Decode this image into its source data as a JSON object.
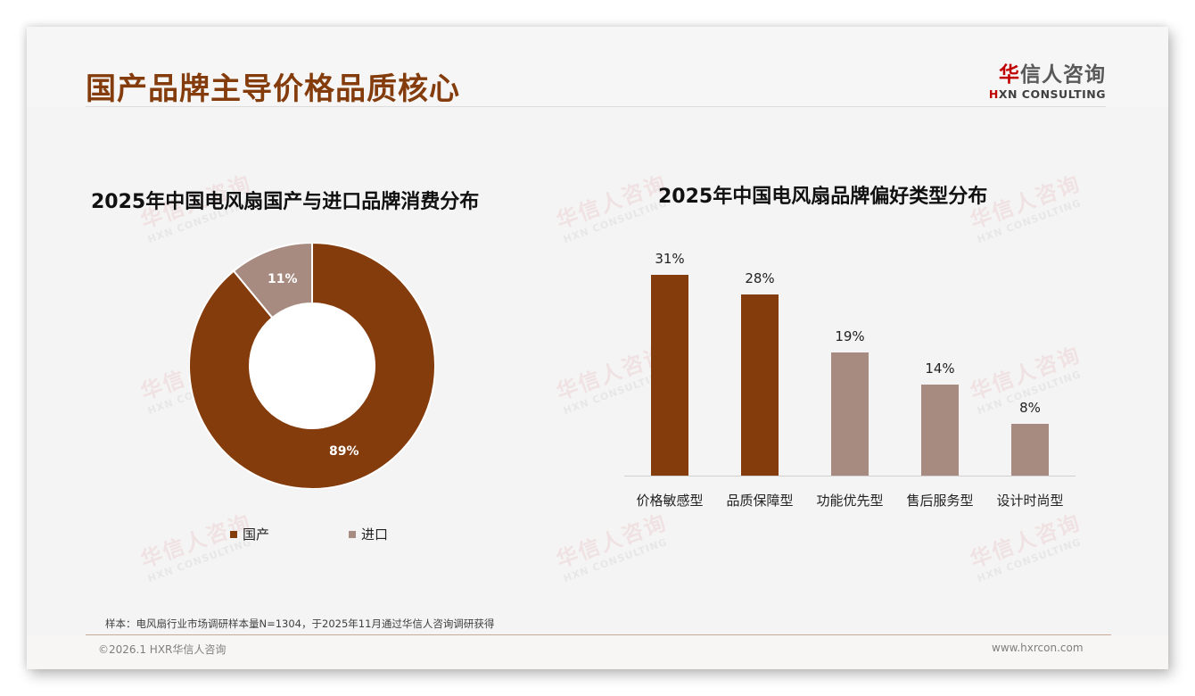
{
  "page": {
    "title": "国产品牌主导价格品质核心",
    "logo": {
      "cn_red": "华",
      "cn_rest": "信人咨询",
      "en_red": "H",
      "en_rest": "XN CONSULTING"
    },
    "watermark": {
      "cn": "华信人咨询",
      "en": "HXN CONSULTING"
    },
    "note": "样本：电风扇行业市场调研样本量N=1304，于2025年11月通过华信人咨询调研获得",
    "copyright": "©2026.1 HXR华信人咨询",
    "website": "www.hxrcon.com"
  },
  "colors": {
    "primary": "#843c0c",
    "secondary": "#a88b80",
    "title": "#843c0c"
  },
  "chart_data": [
    {
      "type": "pie",
      "variant": "donut",
      "title": "2025年中国电风扇国产与进口品牌消费分布",
      "categories": [
        "国产",
        "进口"
      ],
      "values": [
        89,
        11
      ],
      "labels": [
        "89%",
        "11%"
      ],
      "colors": [
        "#843c0c",
        "#a88b80"
      ],
      "legend_position": "bottom"
    },
    {
      "type": "bar",
      "title": "2025年中国电风扇品牌偏好类型分布",
      "categories": [
        "价格敏感型",
        "品质保障型",
        "功能优先型",
        "售后服务型",
        "设计时尚型"
      ],
      "values": [
        31,
        28,
        19,
        14,
        8
      ],
      "labels": [
        "31%",
        "28%",
        "19%",
        "14%",
        "8%"
      ],
      "colors": [
        "#843c0c",
        "#843c0c",
        "#a88b80",
        "#a88b80",
        "#a88b80"
      ],
      "xlabel": "",
      "ylabel": "",
      "grid": false,
      "ylim": [
        0,
        35
      ]
    }
  ]
}
